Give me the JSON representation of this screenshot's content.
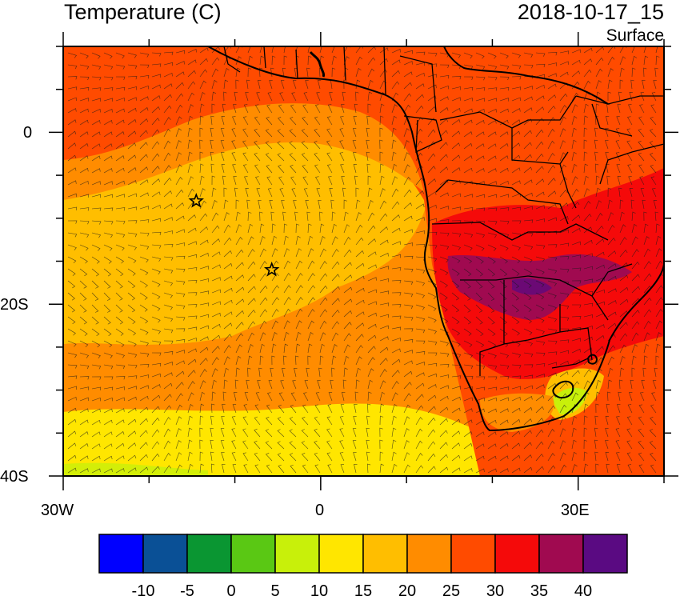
{
  "header": {
    "title": "Temperature (C)",
    "datetime": "2018-10-17_15",
    "level": "Surface"
  },
  "axes": {
    "lon_ticks": [
      {
        "label": "30W",
        "value": -30
      },
      {
        "label": "0",
        "value": 0
      },
      {
        "label": "30E",
        "value": 30
      }
    ],
    "lat_ticks": [
      {
        "label": "0",
        "value": 0
      },
      {
        "label": "20S",
        "value": -20
      },
      {
        "label": "40S",
        "value": -40
      }
    ],
    "lon_range": [
      -30,
      40
    ],
    "lat_range": [
      -40,
      10
    ]
  },
  "markers": [
    {
      "name": "star-marker",
      "lon": -14.5,
      "lat": -8
    },
    {
      "name": "star-marker",
      "lon": -5.7,
      "lat": -16
    }
  ],
  "colorbar": {
    "colors": [
      "#0000ff",
      "#0a5096",
      "#0a9632",
      "#5ac814",
      "#c8f00a",
      "#ffe600",
      "#ffbe00",
      "#ff8c00",
      "#ff4b00",
      "#f50a0a",
      "#a00a50",
      "#5a0a82"
    ],
    "labels": [
      "-10",
      "-5",
      "0",
      "5",
      "10",
      "15",
      "20",
      "25",
      "30",
      "35",
      "40"
    ]
  }
}
